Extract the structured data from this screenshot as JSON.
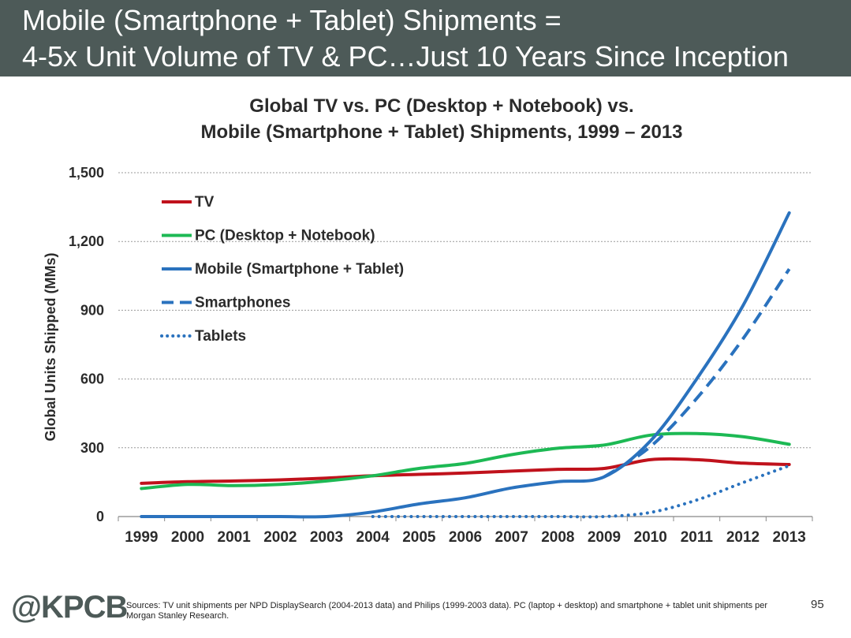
{
  "header": {
    "title_line1": "Mobile (Smartphone + Tablet) Shipments =",
    "title_line2": "4-5x Unit Volume of TV & PC…Just 10 Years Since Inception"
  },
  "chart_data": {
    "type": "line",
    "title_line1": "Global TV vs. PC (Desktop + Notebook) vs.",
    "title_line2": "Mobile (Smartphone + Tablet) Shipments, 1999 – 2013",
    "ylabel": "Global Units Shipped (MMs)",
    "xlabel": "",
    "ylim": [
      0,
      1500
    ],
    "yticks": [
      0,
      300,
      600,
      900,
      1200,
      1500
    ],
    "ytick_labels": [
      "0",
      "300",
      "600",
      "900",
      "1,200",
      "1,500"
    ],
    "grid": "horizontal dotted",
    "legend_position": "top-left",
    "categories": [
      "1999",
      "2000",
      "2001",
      "2002",
      "2003",
      "2004",
      "2005",
      "2006",
      "2007",
      "2008",
      "2009",
      "2010",
      "2011",
      "2012",
      "2013"
    ],
    "series": [
      {
        "name": "TV",
        "color": "#c0121c",
        "style": "solid",
        "values": [
          145,
          152,
          155,
          160,
          168,
          178,
          184,
          190,
          198,
          206,
          210,
          248,
          248,
          233,
          227
        ]
      },
      {
        "name": "PC (Desktop + Notebook)",
        "color": "#1db954",
        "style": "solid",
        "values": [
          122,
          140,
          135,
          140,
          155,
          178,
          210,
          232,
          270,
          298,
          312,
          355,
          362,
          348,
          315
        ]
      },
      {
        "name": "Mobile (Smartphone + Tablet)",
        "color": "#2a72be",
        "style": "solid",
        "values": [
          0,
          0,
          0,
          0,
          0,
          20,
          55,
          82,
          125,
          152,
          173,
          330,
          600,
          920,
          1325
        ]
      },
      {
        "name": "Smartphones",
        "color": "#2a72be",
        "style": "dashed",
        "values": [
          null,
          null,
          null,
          null,
          null,
          null,
          null,
          null,
          null,
          null,
          173,
          305,
          515,
          775,
          1080
        ]
      },
      {
        "name": "Tablets",
        "color": "#2a72be",
        "style": "dotted",
        "values": [
          null,
          null,
          null,
          null,
          null,
          0,
          0,
          0,
          0,
          0,
          0,
          18,
          72,
          148,
          222
        ]
      }
    ]
  },
  "footer": {
    "logo": "@KPCB",
    "sources": "Sources: TV unit shipments per NPD DisplaySearch (2004-2013 data) and Philips (1999-2003 data). PC (laptop + desktop) and smartphone + tablet unit shipments per Morgan Stanley Research.",
    "page_number": "95"
  }
}
